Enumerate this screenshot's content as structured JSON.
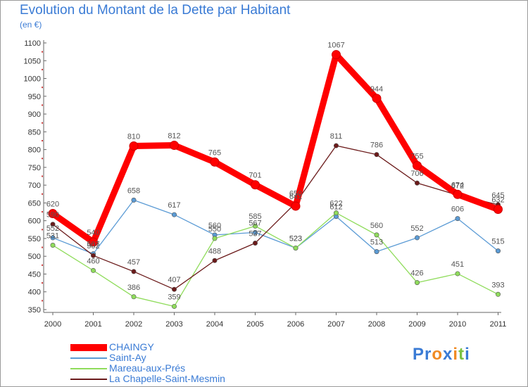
{
  "title": "Evolution du Montant de la Dette par Habitant",
  "unit": "(en €)",
  "logo": "Proxiti",
  "chart_data": {
    "type": "line",
    "categories": [
      "2000",
      "2001",
      "2002",
      "2003",
      "2004",
      "2005",
      "2006",
      "2007",
      "2008",
      "2009",
      "2010",
      "2011"
    ],
    "ylim": [
      350,
      1100
    ],
    "yticks": [
      350,
      400,
      450,
      500,
      550,
      600,
      650,
      700,
      750,
      800,
      850,
      900,
      950,
      1000,
      1050,
      1100
    ],
    "grid": false,
    "legend_position": "bottom-left",
    "series": [
      {
        "name": "CHAINGY",
        "color": "#ff0000",
        "values": [
          620,
          540,
          810,
          812,
          765,
          701,
          641,
          1067,
          944,
          755,
          674,
          632
        ]
      },
      {
        "name": "Saint-Ay",
        "color": "#5b9bd5",
        "values": [
          552,
          507,
          658,
          617,
          560,
          567,
          523,
          612,
          513,
          552,
          606,
          515
        ]
      },
      {
        "name": "Mareau-aux-Prés",
        "color": "#8fdc5b",
        "values": [
          531,
          460,
          386,
          359,
          550,
          585,
          523,
          622,
          560,
          426,
          451,
          393
        ]
      },
      {
        "name": "La Chapelle-Saint-Mesmin",
        "color": "#6b1a1a",
        "values": [
          590,
          502,
          457,
          407,
          488,
          537,
          650,
          811,
          786,
          706,
          672,
          645
        ]
      }
    ]
  }
}
